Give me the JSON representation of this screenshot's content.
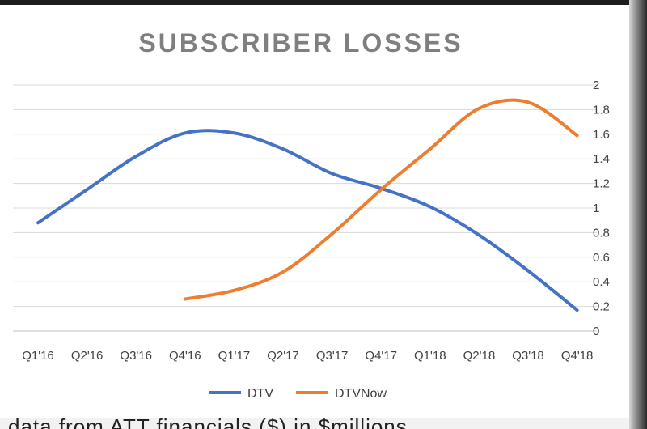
{
  "chart_data": {
    "type": "line",
    "title": "SUBSCRIBER LOSSES",
    "categories": [
      "Q1'16",
      "Q2'16",
      "Q3'16",
      "Q4'16",
      "Q1'17",
      "Q2'17",
      "Q3'17",
      "Q4'17",
      "Q1'18",
      "Q2'18",
      "Q3'18",
      "Q4'18"
    ],
    "ylim": [
      0,
      2
    ],
    "yticks": [
      "0",
      "0.2",
      "0.4",
      "0.6",
      "0.8",
      "1",
      "1.2",
      "1.4",
      "1.6",
      "1.8",
      "2"
    ],
    "grid": true,
    "legend_position": "bottom",
    "series": [
      {
        "name": "DTV",
        "color": "#4472C4",
        "values": [
          0.88,
          1.15,
          1.42,
          1.61,
          1.61,
          1.48,
          1.28,
          1.16,
          1.01,
          0.78,
          0.49,
          0.17
        ]
      },
      {
        "name": "DTVNow",
        "color": "#ED7D31",
        "values": [
          null,
          null,
          null,
          0.26,
          0.33,
          0.48,
          0.79,
          1.15,
          1.48,
          1.81,
          1.86,
          1.59
        ]
      }
    ]
  },
  "bottom_text": "data from ATT financials ($) in $millions"
}
